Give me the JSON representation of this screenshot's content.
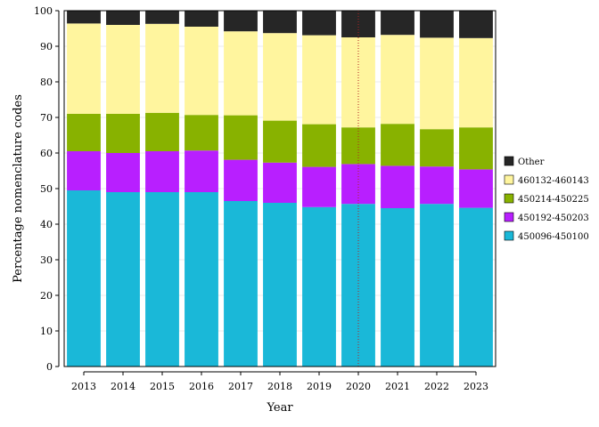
{
  "chart_data": {
    "type": "bar",
    "stacked": true,
    "xlabel": "Year",
    "ylabel": "Percentage nomenclature codes",
    "ylim": [
      0,
      100
    ],
    "yticks": [
      0,
      10,
      20,
      30,
      40,
      50,
      60,
      70,
      80,
      90,
      100
    ],
    "categories": [
      "2013",
      "2014",
      "2015",
      "2016",
      "2017",
      "2018",
      "2019",
      "2020",
      "2021",
      "2022",
      "2023"
    ],
    "series": [
      {
        "name": "450096-450100",
        "color": "#1ab8d8",
        "values": [
          49.5,
          49.0,
          49.0,
          49.0,
          46.5,
          46.0,
          44.8,
          45.7,
          44.5,
          45.7,
          44.6
        ]
      },
      {
        "name": "450192-450203",
        "color": "#b81fff",
        "values": [
          11.0,
          11.0,
          11.5,
          11.7,
          11.6,
          11.3,
          11.3,
          11.2,
          11.9,
          10.5,
          10.8
        ]
      },
      {
        "name": "450214-450225",
        "color": "#88b200",
        "values": [
          10.5,
          11.0,
          10.8,
          10.0,
          12.5,
          11.8,
          12.0,
          10.3,
          11.8,
          10.5,
          11.8
        ]
      },
      {
        "name": "460132-460143",
        "color": "#fff59e",
        "values": [
          25.4,
          25.0,
          25.0,
          24.8,
          23.6,
          24.6,
          25.0,
          25.3,
          25.0,
          25.7,
          25.1
        ]
      },
      {
        "name": "Other",
        "color": "#262626",
        "values": [
          3.6,
          4.0,
          3.7,
          4.5,
          5.8,
          6.3,
          6.9,
          7.5,
          6.8,
          7.6,
          7.7
        ]
      }
    ],
    "legend_order": [
      "Other",
      "460132-460143",
      "450214-450225",
      "450192-450203",
      "450096-450100"
    ],
    "vline": {
      "category": "2020",
      "color": "#b22222",
      "style": "dotted"
    },
    "legend_position": "right",
    "grid": true
  }
}
